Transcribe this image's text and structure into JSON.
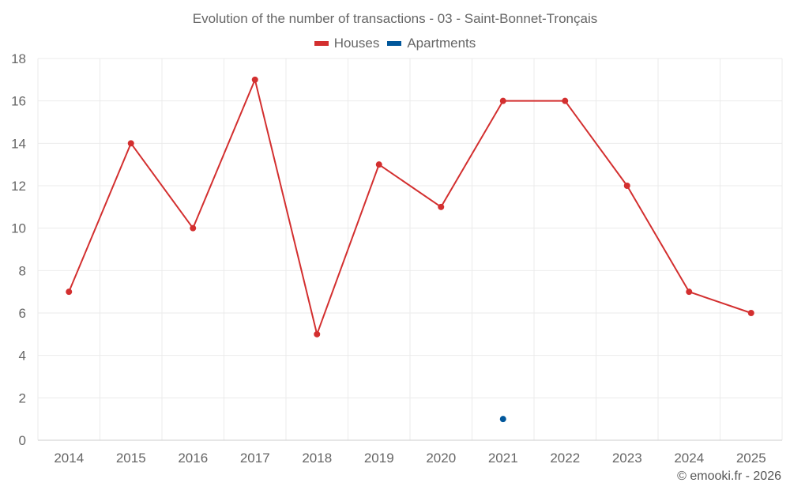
{
  "colors": {
    "houses": "#d32f2f",
    "apartments": "#01579b",
    "grid": "#ebebeb",
    "axis": "#cccccc",
    "text": "#666666"
  },
  "legend": {
    "houses": "Houses",
    "apartments": "Apartments"
  },
  "footer": "© emooki.fr - 2026",
  "chart_data": {
    "type": "line",
    "title": "Evolution of the number of transactions - 03 - Saint-Bonnet-Tronçais",
    "categories": [
      "2014",
      "2015",
      "2016",
      "2017",
      "2018",
      "2019",
      "2020",
      "2021",
      "2022",
      "2023",
      "2024",
      "2025"
    ],
    "series": [
      {
        "name": "Houses",
        "key": "houses",
        "values": [
          7,
          14,
          10,
          17,
          5,
          13,
          11,
          16,
          16,
          12,
          7,
          6
        ]
      },
      {
        "name": "Apartments",
        "key": "apartments",
        "values": [
          null,
          null,
          null,
          null,
          null,
          null,
          null,
          1,
          null,
          null,
          null,
          null
        ]
      }
    ],
    "ylim": [
      0,
      18
    ],
    "yticks": [
      0,
      2,
      4,
      6,
      8,
      10,
      12,
      14,
      16,
      18
    ],
    "xlabel": "",
    "ylabel": "",
    "grid": true,
    "legend_position": "top-center"
  }
}
